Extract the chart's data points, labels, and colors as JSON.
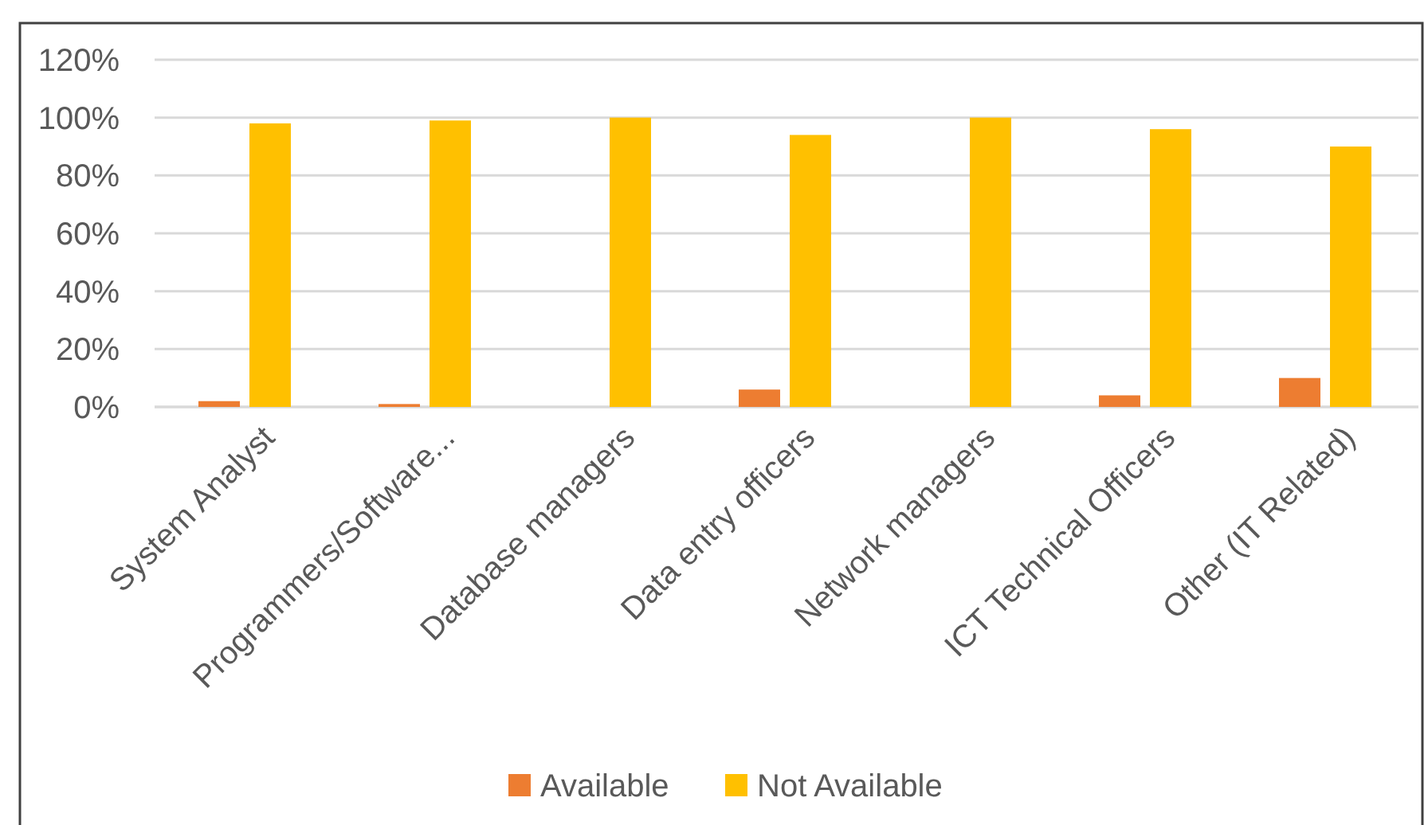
{
  "chart_data": {
    "type": "bar",
    "categories": [
      "System Analyst",
      "Programmers/Software...",
      "Database managers",
      "Data entry officers",
      "Network managers",
      "ICT Technical Officers",
      "Other (IT Related)"
    ],
    "series": [
      {
        "name": "Available",
        "color": "#ed7d31",
        "values": [
          2,
          1,
          0,
          6,
          0,
          4,
          10
        ]
      },
      {
        "name": "Not Available",
        "color": "#ffc000",
        "values": [
          98,
          99,
          100,
          94,
          100,
          96,
          90
        ]
      }
    ],
    "ylim": [
      0,
      120
    ],
    "yticks": [
      {
        "value": 0,
        "label": "0%"
      },
      {
        "value": 20,
        "label": "20%"
      },
      {
        "value": 40,
        "label": "40%"
      },
      {
        "value": 60,
        "label": "60%"
      },
      {
        "value": 80,
        "label": "80%"
      },
      {
        "value": 100,
        "label": "100%"
      },
      {
        "value": 120,
        "label": "120%"
      }
    ],
    "grid": "y",
    "legend": "bottom"
  }
}
